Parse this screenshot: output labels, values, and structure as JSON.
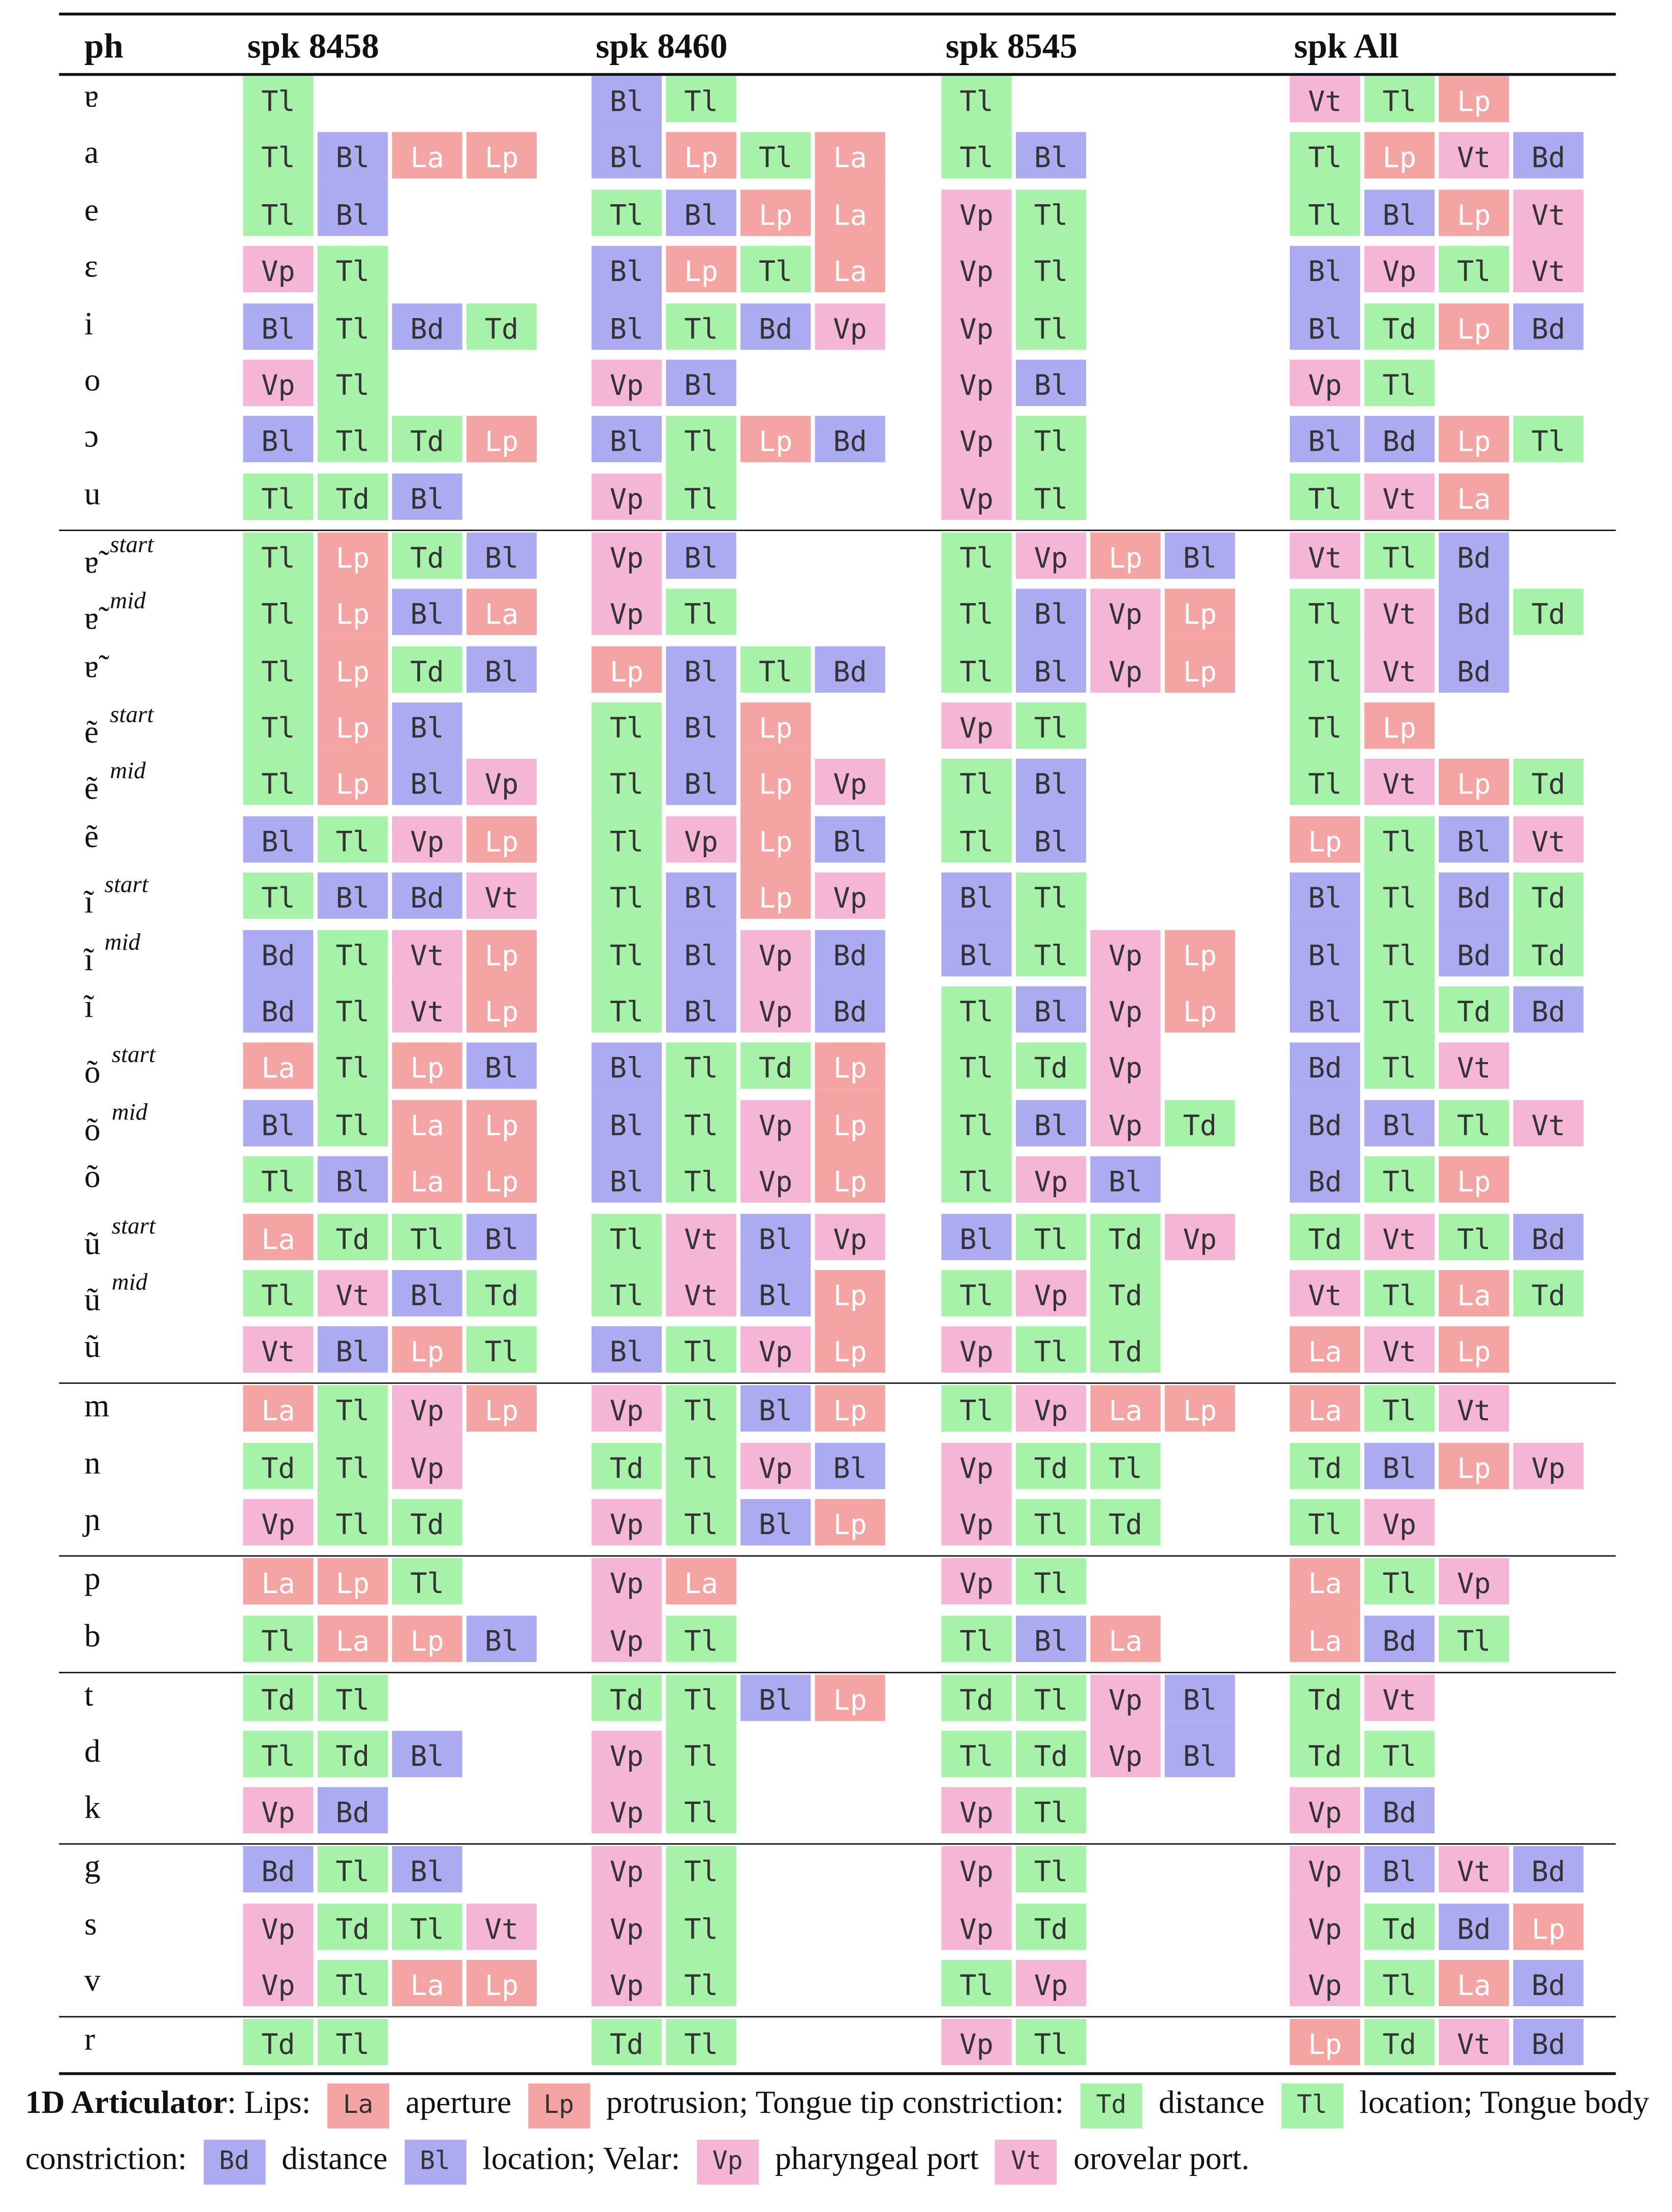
{
  "columns": [
    "ph",
    "spk 8458",
    "spk 8460",
    "spk 8545",
    "spk All"
  ],
  "colors": {
    "La": "#f5a4a4",
    "Lp": "#f5a4a4",
    "Td": "#a7f2a9",
    "Tl": "#a7f2a9",
    "Bd": "#acabf2",
    "Bl": "#acabf2",
    "Vp": "#f5b6d6",
    "Vt": "#f5b6d6"
  },
  "light_text": [
    "La",
    "Lp"
  ],
  "groups": [
    {
      "rows": [
        {
          "ph": "ɐ",
          "cells": [
            [
              "Tl"
            ],
            [
              "Bl",
              "Tl"
            ],
            [
              "Tl"
            ],
            [
              "Vt",
              "Tl",
              "Lp"
            ]
          ]
        },
        {
          "ph": "a",
          "cells": [
            [
              "Tl",
              "Bl",
              "La",
              "Lp"
            ],
            [
              "Bl",
              "Lp",
              "Tl",
              "La"
            ],
            [
              "Tl",
              "Bl"
            ],
            [
              "Tl",
              "Lp",
              "Vt",
              "Bd"
            ]
          ]
        },
        {
          "ph": "e",
          "cells": [
            [
              "Tl",
              "Bl"
            ],
            [
              "Tl",
              "Bl",
              "Lp",
              "La"
            ],
            [
              "Vp",
              "Tl"
            ],
            [
              "Tl",
              "Bl",
              "Lp",
              "Vt"
            ]
          ]
        },
        {
          "ph": "ɛ",
          "cells": [
            [
              "Vp",
              "Tl"
            ],
            [
              "Bl",
              "Lp",
              "Tl",
              "La"
            ],
            [
              "Vp",
              "Tl"
            ],
            [
              "Bl",
              "Vp",
              "Tl",
              "Vt"
            ]
          ]
        },
        {
          "ph": "i",
          "cells": [
            [
              "Bl",
              "Tl",
              "Bd",
              "Td"
            ],
            [
              "Bl",
              "Tl",
              "Bd",
              "Vp"
            ],
            [
              "Vp",
              "Tl"
            ],
            [
              "Bl",
              "Td",
              "Lp",
              "Bd"
            ]
          ]
        },
        {
          "ph": "o",
          "cells": [
            [
              "Vp",
              "Tl"
            ],
            [
              "Vp",
              "Bl"
            ],
            [
              "Vp",
              "Bl"
            ],
            [
              "Vp",
              "Tl"
            ]
          ]
        },
        {
          "ph": "ɔ",
          "cells": [
            [
              "Bl",
              "Tl",
              "Td",
              "Lp"
            ],
            [
              "Bl",
              "Tl",
              "Lp",
              "Bd"
            ],
            [
              "Vp",
              "Tl"
            ],
            [
              "Bl",
              "Bd",
              "Lp",
              "Tl"
            ]
          ]
        },
        {
          "ph": "u",
          "cells": [
            [
              "Tl",
              "Td",
              "Bl"
            ],
            [
              "Vp",
              "Tl"
            ],
            [
              "Vp",
              "Tl"
            ],
            [
              "Tl",
              "Vt",
              "La"
            ]
          ]
        }
      ]
    },
    {
      "rows": [
        {
          "ph": "ɐ̃",
          "sup": "start",
          "cells": [
            [
              "Tl",
              "Lp",
              "Td",
              "Bl"
            ],
            [
              "Vp",
              "Bl"
            ],
            [
              "Tl",
              "Vp",
              "Lp",
              "Bl"
            ],
            [
              "Vt",
              "Tl",
              "Bd"
            ]
          ]
        },
        {
          "ph": "ɐ̃",
          "sup": "mid",
          "cells": [
            [
              "Tl",
              "Lp",
              "Bl",
              "La"
            ],
            [
              "Vp",
              "Tl"
            ],
            [
              "Tl",
              "Bl",
              "Vp",
              "Lp"
            ],
            [
              "Tl",
              "Vt",
              "Bd",
              "Td"
            ]
          ]
        },
        {
          "ph": "ɐ̃",
          "cells": [
            [
              "Tl",
              "Lp",
              "Td",
              "Bl"
            ],
            [
              "Lp",
              "Bl",
              "Tl",
              "Bd"
            ],
            [
              "Tl",
              "Bl",
              "Vp",
              "Lp"
            ],
            [
              "Tl",
              "Vt",
              "Bd"
            ]
          ]
        },
        {
          "ph": "ẽ",
          "sup": "start",
          "cells": [
            [
              "Tl",
              "Lp",
              "Bl"
            ],
            [
              "Tl",
              "Bl",
              "Lp"
            ],
            [
              "Vp",
              "Tl"
            ],
            [
              "Tl",
              "Lp"
            ]
          ]
        },
        {
          "ph": "ẽ",
          "sup": "mid",
          "cells": [
            [
              "Tl",
              "Lp",
              "Bl",
              "Vp"
            ],
            [
              "Tl",
              "Bl",
              "Lp",
              "Vp"
            ],
            [
              "Tl",
              "Bl"
            ],
            [
              "Tl",
              "Vt",
              "Lp",
              "Td"
            ]
          ]
        },
        {
          "ph": "ẽ",
          "cells": [
            [
              "Bl",
              "Tl",
              "Vp",
              "Lp"
            ],
            [
              "Tl",
              "Vp",
              "Lp",
              "Bl"
            ],
            [
              "Tl",
              "Bl"
            ],
            [
              "Lp",
              "Tl",
              "Bl",
              "Vt"
            ]
          ]
        },
        {
          "ph": "ĩ",
          "sup": "start",
          "cells": [
            [
              "Tl",
              "Bl",
              "Bd",
              "Vt"
            ],
            [
              "Tl",
              "Bl",
              "Lp",
              "Vp"
            ],
            [
              "Bl",
              "Tl"
            ],
            [
              "Bl",
              "Tl",
              "Bd",
              "Td"
            ]
          ]
        },
        {
          "ph": "ĩ",
          "sup": "mid",
          "cells": [
            [
              "Bd",
              "Tl",
              "Vt",
              "Lp"
            ],
            [
              "Tl",
              "Bl",
              "Vp",
              "Bd"
            ],
            [
              "Bl",
              "Tl",
              "Vp",
              "Lp"
            ],
            [
              "Bl",
              "Tl",
              "Bd",
              "Td"
            ]
          ]
        },
        {
          "ph": "ĩ",
          "cells": [
            [
              "Bd",
              "Tl",
              "Vt",
              "Lp"
            ],
            [
              "Tl",
              "Bl",
              "Vp",
              "Bd"
            ],
            [
              "Tl",
              "Bl",
              "Vp",
              "Lp"
            ],
            [
              "Bl",
              "Tl",
              "Td",
              "Bd"
            ]
          ]
        },
        {
          "ph": "õ",
          "sup": "start",
          "cells": [
            [
              "La",
              "Tl",
              "Lp",
              "Bl"
            ],
            [
              "Bl",
              "Tl",
              "Td",
              "Lp"
            ],
            [
              "Tl",
              "Td",
              "Vp"
            ],
            [
              "Bd",
              "Tl",
              "Vt"
            ]
          ]
        },
        {
          "ph": "õ",
          "sup": "mid",
          "cells": [
            [
              "Bl",
              "Tl",
              "La",
              "Lp"
            ],
            [
              "Bl",
              "Tl",
              "Vp",
              "Lp"
            ],
            [
              "Tl",
              "Bl",
              "Vp",
              "Td"
            ],
            [
              "Bd",
              "Bl",
              "Tl",
              "Vt"
            ]
          ]
        },
        {
          "ph": "õ",
          "cells": [
            [
              "Tl",
              "Bl",
              "La",
              "Lp"
            ],
            [
              "Bl",
              "Tl",
              "Vp",
              "Lp"
            ],
            [
              "Tl",
              "Vp",
              "Bl"
            ],
            [
              "Bd",
              "Tl",
              "Lp"
            ]
          ]
        },
        {
          "ph": "ũ",
          "sup": "start",
          "cells": [
            [
              "La",
              "Td",
              "Tl",
              "Bl"
            ],
            [
              "Tl",
              "Vt",
              "Bl",
              "Vp"
            ],
            [
              "Bl",
              "Tl",
              "Td",
              "Vp"
            ],
            [
              "Td",
              "Vt",
              "Tl",
              "Bd"
            ]
          ]
        },
        {
          "ph": "ũ",
          "sup": "mid",
          "cells": [
            [
              "Tl",
              "Vt",
              "Bl",
              "Td"
            ],
            [
              "Tl",
              "Vt",
              "Bl",
              "Lp"
            ],
            [
              "Tl",
              "Vp",
              "Td"
            ],
            [
              "Vt",
              "Tl",
              "La",
              "Td"
            ]
          ]
        },
        {
          "ph": "ũ",
          "cells": [
            [
              "Vt",
              "Bl",
              "Lp",
              "Tl"
            ],
            [
              "Bl",
              "Tl",
              "Vp",
              "Lp"
            ],
            [
              "Vp",
              "Tl",
              "Td"
            ],
            [
              "La",
              "Vt",
              "Lp"
            ]
          ]
        }
      ]
    },
    {
      "rows": [
        {
          "ph": "m",
          "cells": [
            [
              "La",
              "Tl",
              "Vp",
              "Lp"
            ],
            [
              "Vp",
              "Tl",
              "Bl",
              "Lp"
            ],
            [
              "Tl",
              "Vp",
              "La",
              "Lp"
            ],
            [
              "La",
              "Tl",
              "Vt"
            ]
          ]
        },
        {
          "ph": "n",
          "cells": [
            [
              "Td",
              "Tl",
              "Vp"
            ],
            [
              "Td",
              "Tl",
              "Vp",
              "Bl"
            ],
            [
              "Vp",
              "Td",
              "Tl"
            ],
            [
              "Td",
              "Bl",
              "Lp",
              "Vp"
            ]
          ]
        },
        {
          "ph": "ɲ",
          "cells": [
            [
              "Vp",
              "Tl",
              "Td"
            ],
            [
              "Vp",
              "Tl",
              "Bl",
              "Lp"
            ],
            [
              "Vp",
              "Tl",
              "Td"
            ],
            [
              "Tl",
              "Vp"
            ]
          ]
        }
      ]
    },
    {
      "rows": [
        {
          "ph": "p",
          "cells": [
            [
              "La",
              "Lp",
              "Tl"
            ],
            [
              "Vp",
              "La"
            ],
            [
              "Vp",
              "Tl"
            ],
            [
              "La",
              "Tl",
              "Vp"
            ]
          ]
        },
        {
          "ph": "b",
          "cells": [
            [
              "Tl",
              "La",
              "Lp",
              "Bl"
            ],
            [
              "Vp",
              "Tl"
            ],
            [
              "Tl",
              "Bl",
              "La"
            ],
            [
              "La",
              "Bd",
              "Tl"
            ]
          ]
        }
      ]
    },
    {
      "rows": [
        {
          "ph": "t",
          "cells": [
            [
              "Td",
              "Tl"
            ],
            [
              "Td",
              "Tl",
              "Bl",
              "Lp"
            ],
            [
              "Td",
              "Tl",
              "Vp",
              "Bl"
            ],
            [
              "Td",
              "Vt"
            ]
          ]
        },
        {
          "ph": "d",
          "cells": [
            [
              "Tl",
              "Td",
              "Bl"
            ],
            [
              "Vp",
              "Tl"
            ],
            [
              "Tl",
              "Td",
              "Vp",
              "Bl"
            ],
            [
              "Td",
              "Tl"
            ]
          ]
        },
        {
          "ph": "k",
          "cells": [
            [
              "Vp",
              "Bd"
            ],
            [
              "Vp",
              "Tl"
            ],
            [
              "Vp",
              "Tl"
            ],
            [
              "Vp",
              "Bd"
            ]
          ]
        }
      ]
    },
    {
      "rows": [
        {
          "ph": "g",
          "cells": [
            [
              "Bd",
              "Tl",
              "Bl"
            ],
            [
              "Vp",
              "Tl"
            ],
            [
              "Vp",
              "Tl"
            ],
            [
              "Vp",
              "Bl",
              "Vt",
              "Bd"
            ]
          ]
        },
        {
          "ph": "s",
          "cells": [
            [
              "Vp",
              "Td",
              "Tl",
              "Vt"
            ],
            [
              "Vp",
              "Tl"
            ],
            [
              "Vp",
              "Td"
            ],
            [
              "Vp",
              "Td",
              "Bd",
              "Lp"
            ]
          ]
        },
        {
          "ph": "v",
          "cells": [
            [
              "Vp",
              "Tl",
              "La",
              "Lp"
            ],
            [
              "Vp",
              "Tl"
            ],
            [
              "Tl",
              "Vp"
            ],
            [
              "Vp",
              "Tl",
              "La",
              "Bd"
            ]
          ]
        }
      ]
    },
    {
      "rows": [
        {
          "ph": "r",
          "cells": [
            [
              "Td",
              "Tl"
            ],
            [
              "Td",
              "Tl"
            ],
            [
              "Vp",
              "Tl"
            ],
            [
              "Lp",
              "Td",
              "Vt",
              "Bd"
            ]
          ]
        }
      ]
    }
  ],
  "legend": [
    {
      "text": "1D Articulator",
      "bold": true
    },
    {
      "text": ": Lips: "
    },
    {
      "tag": "La"
    },
    {
      "text": " aperture "
    },
    {
      "tag": "Lp"
    },
    {
      "text": " protrusion; Tongue tip constriction: "
    },
    {
      "tag": "Td"
    },
    {
      "text": " distance "
    },
    {
      "tag": "Tl"
    },
    {
      "text": " location; Tongue body constriction: "
    },
    {
      "tag": "Bd"
    },
    {
      "text": " distance "
    },
    {
      "tag": "Bl"
    },
    {
      "text": " location; Velar: "
    },
    {
      "tag": "Vp"
    },
    {
      "text": " pharyngeal port "
    },
    {
      "tag": "Vt"
    },
    {
      "text": " orovelar port."
    }
  ]
}
